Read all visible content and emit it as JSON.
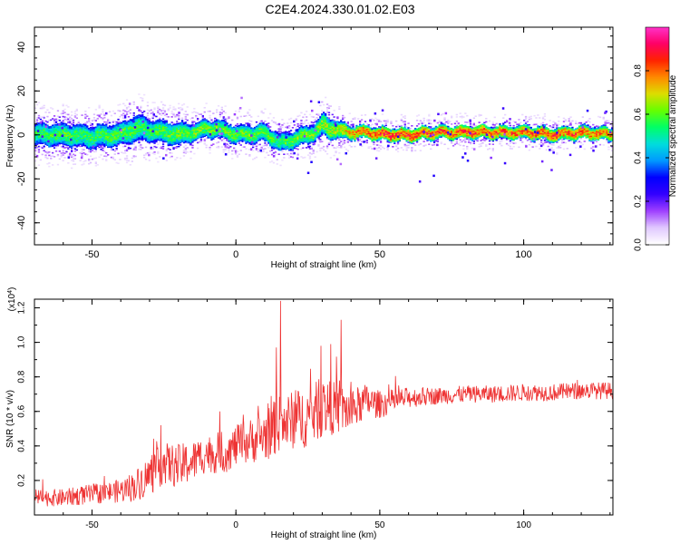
{
  "figure": {
    "title": "C2E4.2024.330.01.02.E03"
  },
  "chart_data": [
    {
      "type": "heatmap",
      "xlabel": "Height of straight line (km)",
      "ylabel": "Frequency (Hz)",
      "xlim": [
        -70,
        131
      ],
      "ylim": [
        -50,
        49
      ],
      "x_ticks": [
        -50,
        0,
        50,
        100
      ],
      "y_ticks": [
        -40,
        -20,
        0,
        20,
        40
      ],
      "x_tick_labels": [
        "-50",
        "0",
        "50",
        "100"
      ],
      "y_tick_labels": [
        "-40",
        "-20",
        "0",
        "20",
        "40"
      ],
      "colorbar": {
        "label": "Normalized spectral amplitude",
        "range": [
          0.0,
          1.0
        ],
        "ticks": [
          0.0,
          0.2,
          0.4,
          0.6,
          0.8
        ],
        "tick_labels": [
          "0.0",
          "0.2",
          "0.4",
          "0.6",
          "0.8"
        ],
        "colors": [
          "#ffffff",
          "#e0c8ff",
          "#9f3fff",
          "#3300ff",
          "#0000ff",
          "#0099ff",
          "#00dddd",
          "#00ff66",
          "#66ff00",
          "#dddd00",
          "#ff8800",
          "#ff2200",
          "#ff0066",
          "#ff33cc"
        ]
      },
      "ridge": {
        "x": [
          -70,
          -60,
          -50,
          -40,
          -35,
          -30,
          -25,
          -20,
          -15,
          -10,
          -5,
          0,
          5,
          10,
          12,
          15,
          18,
          20,
          25,
          28,
          30,
          32,
          35,
          40,
          45,
          50,
          60,
          70,
          80,
          90,
          100,
          110,
          120,
          131
        ],
        "center_hz": [
          0,
          0,
          -1,
          0,
          3,
          2,
          1,
          0,
          1,
          3,
          2,
          0,
          0,
          1,
          -1,
          -4,
          -3,
          -2,
          0,
          2,
          4,
          3,
          2,
          1,
          1,
          0,
          0,
          1,
          1,
          1,
          1,
          0,
          1,
          0
        ],
        "amplitude": [
          0.6,
          0.62,
          0.6,
          0.62,
          0.62,
          0.6,
          0.62,
          0.64,
          0.65,
          0.66,
          0.65,
          0.64,
          0.63,
          0.62,
          0.62,
          0.6,
          0.62,
          0.64,
          0.65,
          0.66,
          0.68,
          0.68,
          0.72,
          0.8,
          0.86,
          0.9,
          0.9,
          0.88,
          0.88,
          0.86,
          0.84,
          0.88,
          0.86,
          0.82
        ],
        "half_width_hz": [
          5,
          5,
          5,
          5,
          6,
          5,
          5,
          5,
          4,
          4,
          4,
          4,
          4,
          4,
          4,
          4,
          4,
          4,
          4,
          4,
          5,
          5,
          4,
          3,
          3,
          3,
          3,
          3,
          3,
          3,
          3,
          3,
          3,
          3
        ]
      }
    },
    {
      "type": "line",
      "xlabel": "Height of straight line (km)",
      "ylabel": "SNR (10 * v/v)",
      "ylabel_multiplier": "(x10",
      "ylabel_multiplier_exp": "4",
      "ylabel_multiplier_close": ")",
      "xlim": [
        -70,
        131
      ],
      "ylim": [
        0.0,
        1.25
      ],
      "x_ticks": [
        -50,
        0,
        50,
        100
      ],
      "y_ticks": [
        0.2,
        0.4,
        0.6,
        0.8,
        1.0,
        1.2
      ],
      "x_tick_labels": [
        "-50",
        "0",
        "50",
        "100"
      ],
      "y_tick_labels": [
        "0.2",
        "0.4",
        "0.6",
        "0.8",
        "1.0",
        "1.2"
      ],
      "color": "#ee3333",
      "series": [
        {
          "x": [
            -70,
            -60,
            -50,
            -45,
            -40,
            -35,
            -30,
            -25,
            -20,
            -15,
            -10,
            -5,
            0,
            5,
            10,
            15,
            20,
            25,
            30,
            35,
            40,
            45,
            50,
            60,
            70,
            80,
            90,
            100,
            110,
            120,
            131
          ],
          "mean": [
            0.1,
            0.1,
            0.12,
            0.13,
            0.14,
            0.17,
            0.23,
            0.3,
            0.28,
            0.31,
            0.36,
            0.34,
            0.4,
            0.43,
            0.46,
            0.52,
            0.55,
            0.57,
            0.62,
            0.62,
            0.6,
            0.66,
            0.64,
            0.68,
            0.69,
            0.7,
            0.7,
            0.71,
            0.71,
            0.72,
            0.72
          ],
          "noise": [
            0.05,
            0.05,
            0.06,
            0.06,
            0.07,
            0.09,
            0.12,
            0.12,
            0.13,
            0.12,
            0.11,
            0.11,
            0.12,
            0.13,
            0.15,
            0.17,
            0.17,
            0.18,
            0.17,
            0.15,
            0.13,
            0.1,
            0.08,
            0.06,
            0.05,
            0.05,
            0.05,
            0.05,
            0.05,
            0.05,
            0.05
          ],
          "peaks": [
            {
              "x": 15.5,
              "y": 1.24
            },
            {
              "x": 36.5,
              "y": 1.13
            },
            {
              "x": 14.0,
              "y": 0.97
            },
            {
              "x": 29.5,
              "y": 0.98
            },
            {
              "x": 33.0,
              "y": 0.99
            },
            {
              "x": -5.5,
              "y": 0.6
            },
            {
              "x": -26.0,
              "y": 0.52
            }
          ]
        }
      ]
    }
  ]
}
